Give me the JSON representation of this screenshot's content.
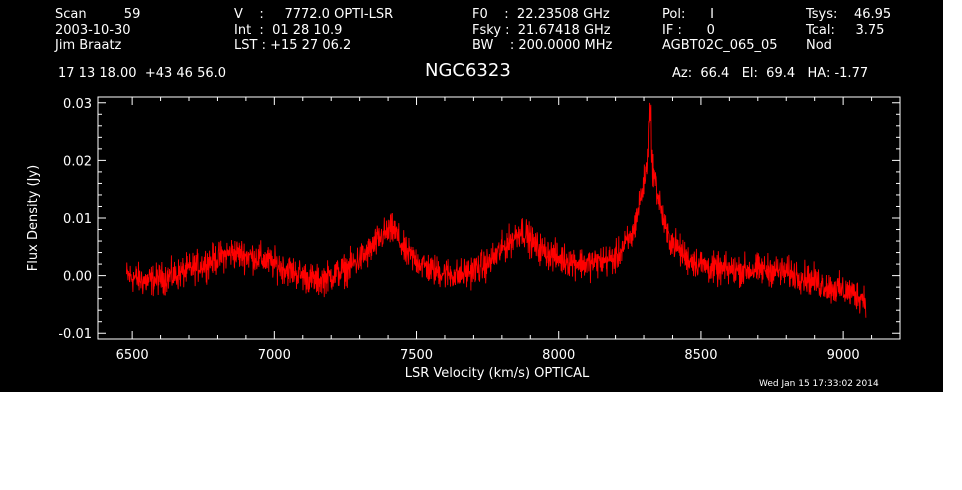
{
  "header": {
    "col1": [
      "Scan         59",
      "2003-10-30",
      "Jim Braatz"
    ],
    "col2": [
      "V    :     7772.0 OPTI-LSR",
      "Int  :  01 28 10.9",
      "LST : +15 27 06.2"
    ],
    "col3": [
      "F0    :  22.23508 GHz",
      "Fsky :  21.67418 GHz",
      "BW    : 200.0000 MHz"
    ],
    "col4": [
      "Pol:      I",
      "IF :      0",
      "AGBT02C_065_05"
    ],
    "col5": [
      "Tsys:    46.95",
      "Tcal:     3.75",
      "Nod"
    ],
    "coords": "17 13 18.00  +43 46 56.0",
    "source": "NGC6323",
    "pointing": "Az:  66.4   El:  69.4   HA: -1.77",
    "timestamp": "Wed Jan 15 17:33:02 2014"
  },
  "colors": {
    "background": "#000000",
    "axes": "#ffffff",
    "series": "#ff0000"
  },
  "chart_data": {
    "type": "line",
    "xlabel": "LSR Velocity (km/s) OPTICAL",
    "ylabel": "Flux Density (Jy)",
    "xlim": [
      6380,
      9200
    ],
    "ylim": [
      -0.011,
      0.031
    ],
    "xticks": [
      6500,
      7000,
      7500,
      8000,
      8500,
      9000
    ],
    "xtick_labels": [
      "6500",
      "7000",
      "7500",
      "8000",
      "8500",
      "9000"
    ],
    "yticks": [
      -0.01,
      0.0,
      0.01,
      0.02,
      0.03
    ],
    "ytick_labels": [
      "-0.01",
      "0.00",
      "0.01",
      "0.02",
      "0.03"
    ],
    "grid": false,
    "series": [
      {
        "values": [
          [
            6480,
            0.0
          ],
          [
            6550,
            -0.001
          ],
          [
            6650,
            0.0
          ],
          [
            6750,
            0.002
          ],
          [
            6850,
            0.004
          ],
          [
            6950,
            0.003
          ],
          [
            7050,
            0.001
          ],
          [
            7150,
            -0.001
          ],
          [
            7250,
            0.001
          ],
          [
            7330,
            0.004
          ],
          [
            7380,
            0.007
          ],
          [
            7420,
            0.008
          ],
          [
            7460,
            0.004
          ],
          [
            7550,
            0.001
          ],
          [
            7650,
            0.0
          ],
          [
            7750,
            0.002
          ],
          [
            7830,
            0.006
          ],
          [
            7870,
            0.008
          ],
          [
            7920,
            0.005
          ],
          [
            8000,
            0.003
          ],
          [
            8100,
            0.002
          ],
          [
            8200,
            0.003
          ],
          [
            8260,
            0.007
          ],
          [
            8300,
            0.016
          ],
          [
            8320,
            0.022
          ],
          [
            8340,
            0.016
          ],
          [
            8380,
            0.007
          ],
          [
            8450,
            0.003
          ],
          [
            8550,
            0.001
          ],
          [
            8650,
            0.001
          ],
          [
            8750,
            0.001
          ],
          [
            8850,
            0.0
          ],
          [
            8950,
            -0.002
          ],
          [
            9030,
            -0.003
          ],
          [
            9080,
            -0.004
          ]
        ]
      }
    ]
  }
}
